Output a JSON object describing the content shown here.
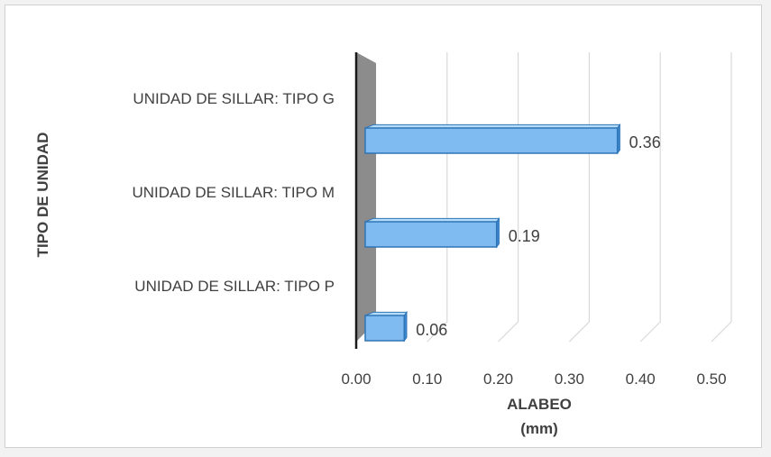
{
  "chart_data": {
    "type": "bar",
    "orientation": "horizontal",
    "style": "3d",
    "categories": [
      "UNIDAD DE SILLAR: TIPO G",
      "UNIDAD DE SILLAR: TIPO M",
      "UNIDAD DE SILLAR: TIPO P"
    ],
    "values": [
      0.36,
      0.19,
      0.06
    ],
    "data_labels": [
      "0.36",
      "0.19",
      "0.06"
    ],
    "xlabel_line1": "ALABEO",
    "xlabel_line2": "(mm)",
    "ylabel": "TIPO DE UNIDAD",
    "xlim": [
      0,
      0.5
    ],
    "xticks": [
      "0.00",
      "0.10",
      "0.20",
      "0.30",
      "0.40",
      "0.50"
    ],
    "grid": true,
    "legend": "none",
    "colors": {
      "bar_face": "#7fbaf0",
      "bar_top": "#b7dbfa",
      "bar_end": "#3f87d0",
      "bar_edge": "#2e75b6",
      "wall": "#8c8c8c",
      "grid": "#d9d9d9",
      "text": "#404040"
    }
  }
}
